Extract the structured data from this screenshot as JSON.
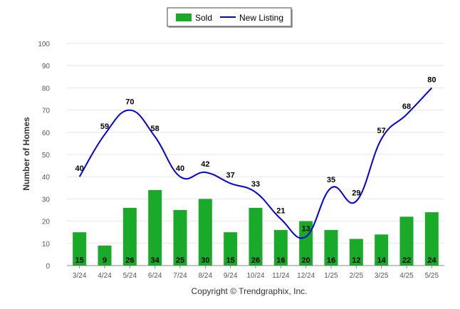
{
  "chart_data": {
    "type": "bar",
    "title": "",
    "xlabel": "",
    "ylabel": "Number of Homes",
    "ylim": [
      0,
      100
    ],
    "yticks": [
      0,
      10,
      20,
      30,
      40,
      50,
      60,
      70,
      80,
      90,
      100
    ],
    "grid": true,
    "legend_position": "top-center",
    "categories": [
      "3/24",
      "4/24",
      "5/24",
      "6/24",
      "7/24",
      "8/24",
      "9/24",
      "10/24",
      "11/24",
      "12/24",
      "1/25",
      "2/25",
      "3/25",
      "4/25",
      "5/25"
    ],
    "series": [
      {
        "name": "Sold",
        "type": "bar",
        "color": "#1aaa2a",
        "values": [
          15,
          9,
          26,
          34,
          25,
          30,
          15,
          26,
          16,
          20,
          16,
          12,
          14,
          22,
          24
        ]
      },
      {
        "name": "New Listing",
        "type": "line",
        "color": "#0000dd",
        "values": [
          40,
          59,
          70,
          58,
          40,
          42,
          37,
          33,
          21,
          13,
          35,
          29,
          57,
          68,
          80
        ]
      }
    ]
  },
  "footer": {
    "copyright": "Copyright © Trendgraphix, Inc."
  }
}
